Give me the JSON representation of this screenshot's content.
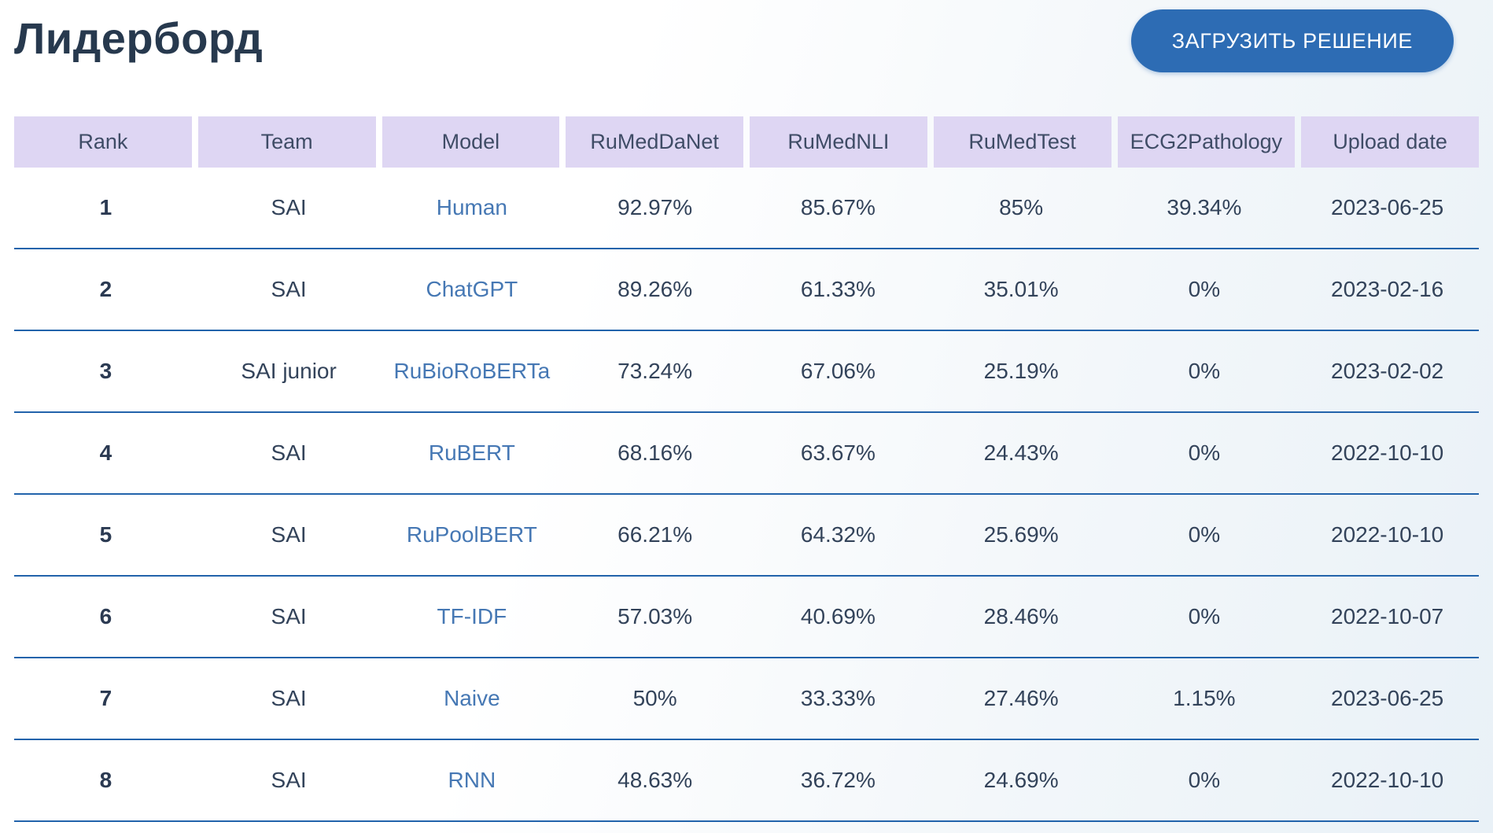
{
  "page": {
    "title": "Лидерборд"
  },
  "toolbar": {
    "upload_button_label": "ЗАГРУЗИТЬ РЕШЕНИЕ"
  },
  "colors": {
    "button_bg": "#2d6cb4",
    "header_cell_bg": "#ded6f3",
    "header_text": "#3f4c66",
    "title_text": "#27394e",
    "body_text": "#33435a",
    "link_blue": "#4678b4",
    "row_separator": "#2263ab",
    "page_gradient_end": "#e9f1f7"
  },
  "table": {
    "columns": [
      "Rank",
      "Team",
      "Model",
      "RuMedDaNet",
      "RuMedNLI",
      "RuMedTest",
      "ECG2Pathology",
      "Upload date"
    ],
    "rows": [
      {
        "rank": "1",
        "team": "SAI",
        "model": "Human",
        "rumeddanet": "92.97%",
        "rumednli": "85.67%",
        "rumedtest": "85%",
        "ecg2pathology": "39.34%",
        "upload_date": "2023-06-25"
      },
      {
        "rank": "2",
        "team": "SAI",
        "model": "ChatGPT",
        "rumeddanet": "89.26%",
        "rumednli": "61.33%",
        "rumedtest": "35.01%",
        "ecg2pathology": "0%",
        "upload_date": "2023-02-16"
      },
      {
        "rank": "3",
        "team": "SAI junior",
        "model": "RuBioRoBERTa",
        "rumeddanet": "73.24%",
        "rumednli": "67.06%",
        "rumedtest": "25.19%",
        "ecg2pathology": "0%",
        "upload_date": "2023-02-02"
      },
      {
        "rank": "4",
        "team": "SAI",
        "model": "RuBERT",
        "rumeddanet": "68.16%",
        "rumednli": "63.67%",
        "rumedtest": "24.43%",
        "ecg2pathology": "0%",
        "upload_date": "2022-10-10"
      },
      {
        "rank": "5",
        "team": "SAI",
        "model": "RuPoolBERT",
        "rumeddanet": "66.21%",
        "rumednli": "64.32%",
        "rumedtest": "25.69%",
        "ecg2pathology": "0%",
        "upload_date": "2022-10-10"
      },
      {
        "rank": "6",
        "team": "SAI",
        "model": "TF-IDF",
        "rumeddanet": "57.03%",
        "rumednli": "40.69%",
        "rumedtest": "28.46%",
        "ecg2pathology": "0%",
        "upload_date": "2022-10-07"
      },
      {
        "rank": "7",
        "team": "SAI",
        "model": "Naive",
        "rumeddanet": "50%",
        "rumednli": "33.33%",
        "rumedtest": "27.46%",
        "ecg2pathology": "1.15%",
        "upload_date": "2023-06-25"
      },
      {
        "rank": "8",
        "team": "SAI",
        "model": "RNN",
        "rumeddanet": "48.63%",
        "rumednli": "36.72%",
        "rumedtest": "24.69%",
        "ecg2pathology": "0%",
        "upload_date": "2022-10-10"
      }
    ]
  }
}
